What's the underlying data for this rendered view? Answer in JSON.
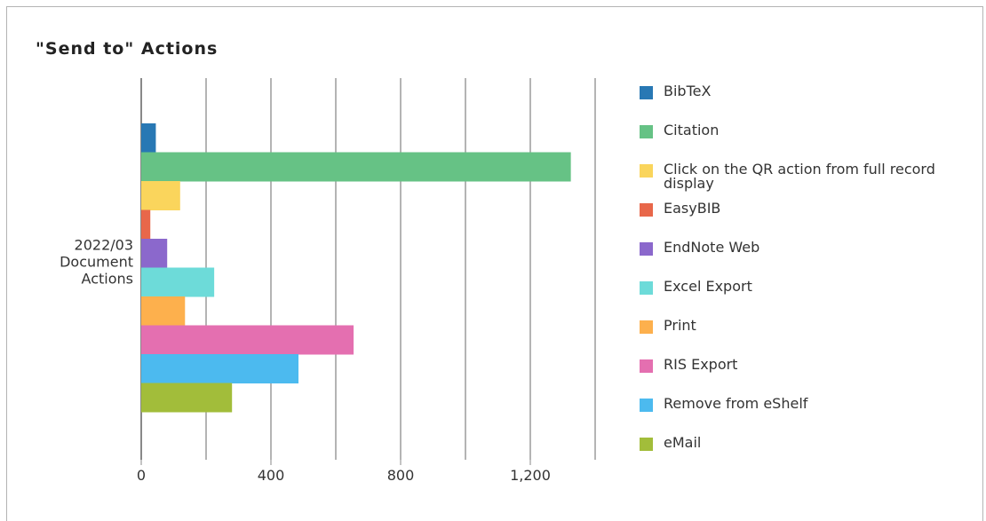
{
  "chart_data": {
    "type": "bar",
    "orientation": "horizontal",
    "title": "\"Send to\" Actions",
    "category_label": "2022/03 Document Actions",
    "xlim": [
      0,
      1400
    ],
    "xticks": [
      0,
      400,
      800,
      1200
    ],
    "xtick_labels": [
      "0",
      "400",
      "800",
      "1,200"
    ],
    "grid": true,
    "legend_position": "right",
    "series": [
      {
        "name": "BibTeX",
        "value": 45,
        "color": "#2878b4"
      },
      {
        "name": "Citation",
        "value": 1325,
        "color": "#66c285"
      },
      {
        "name": "Click on the QR action from full record display",
        "value": 120,
        "color": "#fad55c"
      },
      {
        "name": "EasyBIB",
        "value": 28,
        "color": "#e8674a"
      },
      {
        "name": "EndNote Web",
        "value": 80,
        "color": "#8b68cc"
      },
      {
        "name": "Excel Export",
        "value": 225,
        "color": "#6ddbd9"
      },
      {
        "name": "Print",
        "value": 135,
        "color": "#fdb04d"
      },
      {
        "name": "RIS Export",
        "value": 655,
        "color": "#e46fb0"
      },
      {
        "name": "Remove from eShelf",
        "value": 485,
        "color": "#4cbaef"
      },
      {
        "name": "eMail",
        "value": 280,
        "color": "#a2bd3a"
      }
    ]
  }
}
